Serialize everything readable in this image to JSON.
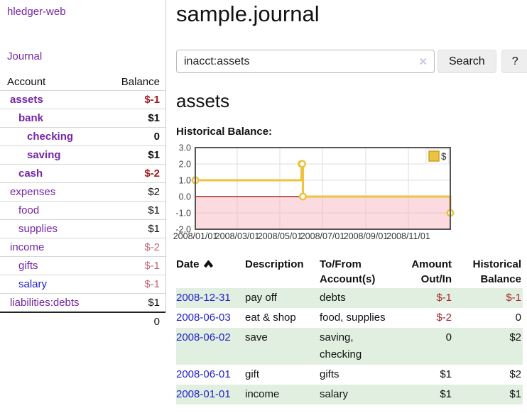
{
  "colors": {
    "link_purple": "#7525a5",
    "link_blue": "#2222cc",
    "negative_strong": "#a11b22",
    "negative_soft": "#bf6a74",
    "table_row_green": "#e1efe0",
    "chart_line_gold": "#edc240",
    "chart_negative_fill": "#f6aab4",
    "zero_line_red": "#990000"
  },
  "sidebar": {
    "app_title": "hledger-web",
    "journal_link": "Journal",
    "accounts": {
      "header_account": "Account",
      "header_balance": "Balance",
      "rows": [
        {
          "name": "assets",
          "balance": "$-1"
        },
        {
          "name": "bank",
          "balance": "$1"
        },
        {
          "name": "checking",
          "balance": "0"
        },
        {
          "name": "saving",
          "balance": "$1"
        },
        {
          "name": "cash",
          "balance": "$-2"
        },
        {
          "name": "expenses",
          "balance": "$2"
        },
        {
          "name": "food",
          "balance": "$1"
        },
        {
          "name": "supplies",
          "balance": "$1"
        },
        {
          "name": "income",
          "balance": "$-2"
        },
        {
          "name": "gifts",
          "balance": "$-1"
        },
        {
          "name": "salary",
          "balance": "$-1"
        },
        {
          "name": "liabilities:debts",
          "balance": "$1"
        }
      ],
      "total": "0"
    }
  },
  "main": {
    "title": "sample.journal",
    "search": {
      "value": "inacct:assets",
      "clear_icon": "✕",
      "search_button": "Search",
      "help_button": "?"
    },
    "account_heading": "assets",
    "section_label": "Historical Balance:",
    "register": {
      "headers": {
        "date": "Date",
        "description": "Description",
        "accounts": "To/From Account(s)",
        "amount": "Amount Out/In",
        "balance": "Historical Balance"
      },
      "rows": [
        {
          "date": "2008-12-31",
          "description": "pay off",
          "accounts": "debts",
          "amount": "$-1",
          "balance": "$-1"
        },
        {
          "date": "2008-06-03",
          "description": "eat & shop",
          "accounts": "food, supplies",
          "amount": "$-2",
          "balance": "0"
        },
        {
          "date": "2008-06-02",
          "description": "save",
          "accounts": "saving, checking",
          "amount": "0",
          "balance": "$2"
        },
        {
          "date": "2008-06-01",
          "description": "gift",
          "accounts": "gifts",
          "amount": "$1",
          "balance": "$2"
        },
        {
          "date": "2008-01-01",
          "description": "income",
          "accounts": "salary",
          "amount": "$1",
          "balance": "$1"
        }
      ]
    }
  },
  "chart_data": {
    "type": "line",
    "title": "Historical Balance:",
    "style": "steps",
    "series": [
      {
        "name": "$",
        "color": "#edc240",
        "points": [
          [
            "2008-01-01",
            1
          ],
          [
            "2008-06-01",
            2
          ],
          [
            "2008-06-02",
            2
          ],
          [
            "2008-06-03",
            0
          ],
          [
            "2008-12-31",
            -1
          ]
        ]
      }
    ],
    "x_ticks": [
      "2008/01/01",
      "2008/03/01",
      "2008/05/01",
      "2008/07/01",
      "2008/09/01",
      "2008/11/01"
    ],
    "y_ticks": [
      3.0,
      2.0,
      1.0,
      0.0,
      -1.0,
      -2.0
    ],
    "xlim": [
      "2008-01-01",
      "2008-12-31"
    ],
    "ylim": [
      -2,
      3
    ],
    "grid": true,
    "legend_position": "top-right",
    "negative_region_shaded": true
  }
}
